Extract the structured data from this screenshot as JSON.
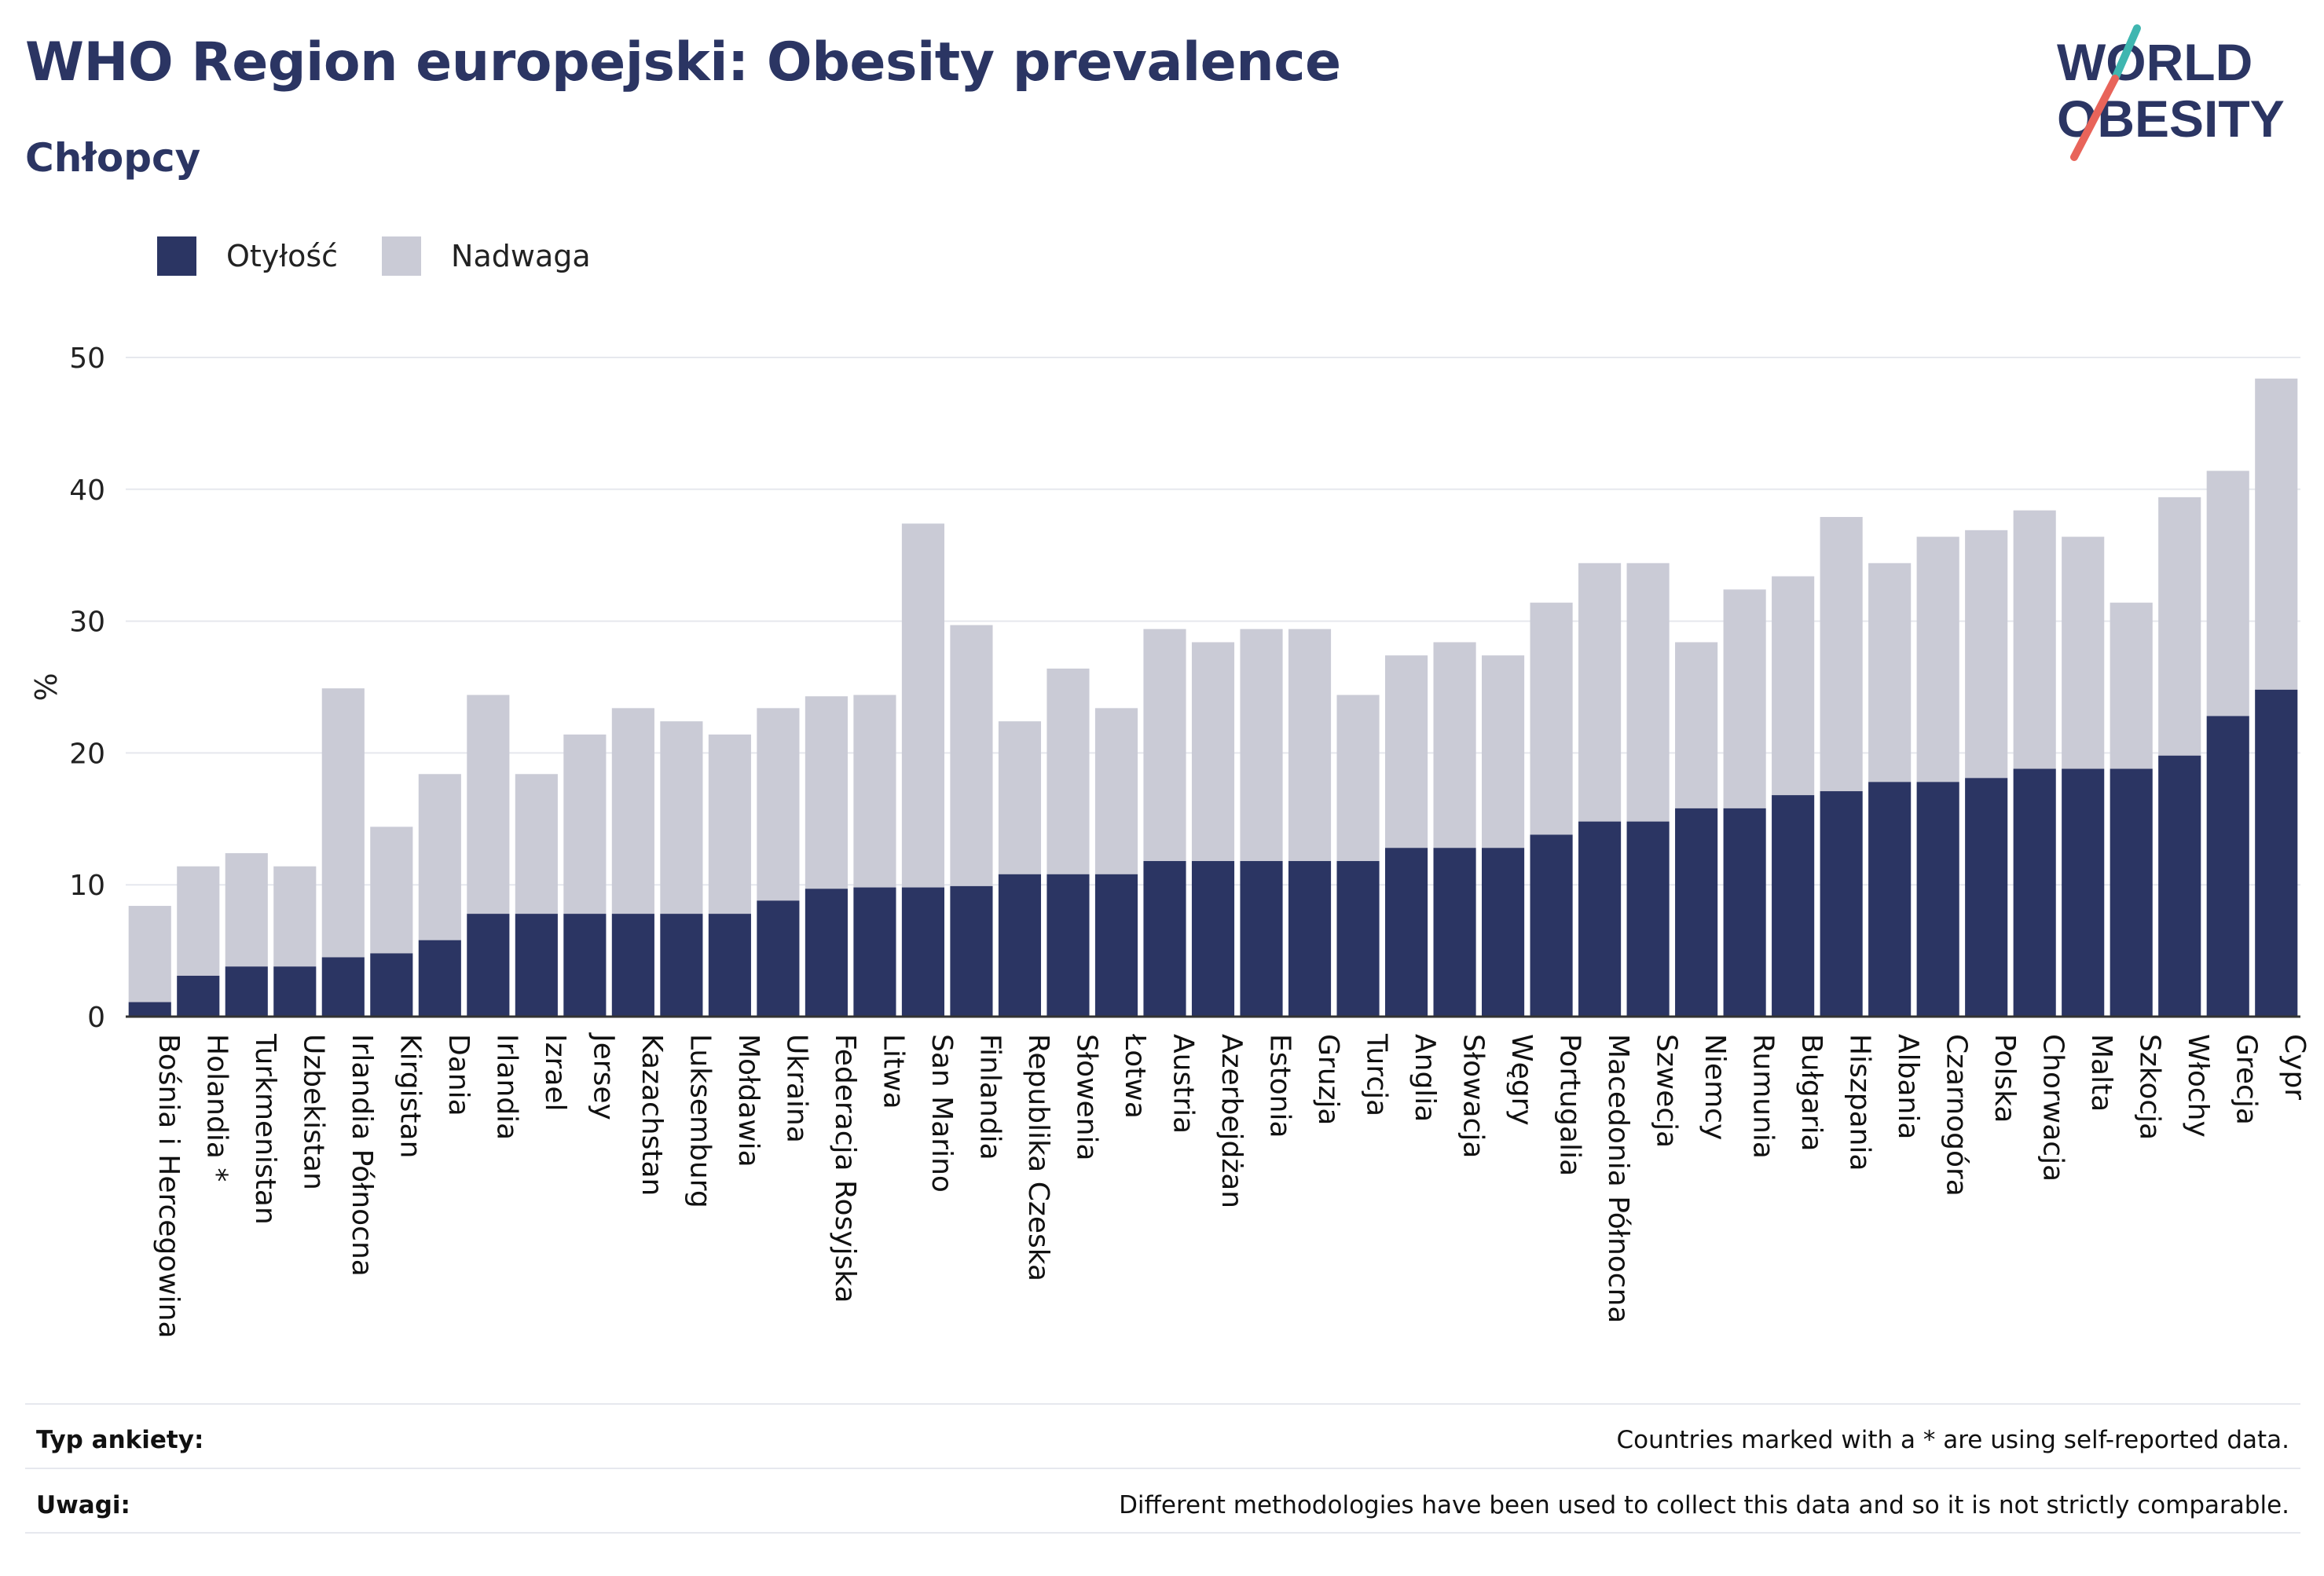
{
  "header": {
    "title": "WHO Region europejski: Obesity prevalence",
    "subtitle": "Chłopcy"
  },
  "logo": {
    "line1": "WORLD",
    "line2": "OBESITY",
    "color": "#2b3563",
    "accent_teal": "#3fb6b0",
    "accent_red": "#e8645a"
  },
  "legend": {
    "items": [
      {
        "label": "Otyłość",
        "color": "#2b3563"
      },
      {
        "label": "Nadwaga",
        "color": "#cacbd6"
      }
    ]
  },
  "chart_data": {
    "type": "bar",
    "stacked": true,
    "title": "WHO Region europejski: Obesity prevalence",
    "subtitle": "Chłopcy",
    "ylabel": "%",
    "xlabel": "",
    "ylim": [
      0,
      50
    ],
    "yticks": [
      0,
      10,
      20,
      30,
      40,
      50
    ],
    "grid": true,
    "legend_position": "top-left",
    "categories": [
      "Bośnia i Hercegowina",
      "Holandia *",
      "Turkmenistan",
      "Uzbekistan",
      "Irlandia Północna",
      "Kirgistan",
      "Dania",
      "Irlandia",
      "Izrael",
      "Jersey",
      "Kazachstan",
      "Luksemburg",
      "Mołdawia",
      "Ukraina",
      "Federacja Rosyjska",
      "Litwa",
      "San Marino",
      "Finlandia",
      "Republika Czeska",
      "Słowenia",
      "Łotwa",
      "Austria",
      "Azerbejdżan",
      "Estonia",
      "Gruzja",
      "Turcja",
      "Anglia",
      "Słowacja",
      "Węgry",
      "Portugalia",
      "Macedonia Północna",
      "Szwecja",
      "Niemcy",
      "Rumunia",
      "Bułgaria",
      "Hiszpania",
      "Albania",
      "Czarnogóra",
      "Polska",
      "Chorwacja",
      "Malta",
      "Szkocja",
      "Włochy",
      "Grecja",
      "Cypr"
    ],
    "series": [
      {
        "name": "Otyłość",
        "color": "#2b3563",
        "values": [
          1.1,
          3.1,
          3.8,
          3.8,
          4.5,
          4.8,
          5.8,
          7.8,
          7.8,
          7.8,
          7.8,
          7.8,
          7.8,
          8.8,
          9.7,
          9.8,
          9.8,
          9.9,
          10.8,
          10.8,
          10.8,
          11.8,
          11.8,
          11.8,
          11.8,
          11.8,
          12.8,
          12.8,
          12.8,
          13.8,
          14.8,
          14.8,
          15.8,
          15.8,
          16.8,
          17.1,
          17.8,
          17.8,
          18.1,
          18.8,
          18.8,
          18.8,
          19.8,
          22.8,
          24.8
        ]
      },
      {
        "name": "Nadwaga",
        "color": "#cacbd6",
        "values": [
          7.3,
          8.3,
          8.6,
          7.6,
          20.4,
          9.6,
          12.6,
          16.6,
          10.6,
          13.6,
          15.6,
          14.6,
          13.6,
          14.6,
          14.6,
          14.6,
          27.6,
          19.8,
          11.6,
          15.6,
          12.6,
          17.6,
          16.6,
          17.6,
          17.6,
          12.6,
          14.6,
          15.6,
          14.6,
          17.6,
          19.6,
          19.6,
          12.6,
          16.6,
          16.6,
          20.8,
          16.6,
          18.6,
          18.8,
          19.6,
          17.6,
          12.6,
          19.6,
          18.6,
          23.6
        ]
      }
    ]
  },
  "footer": {
    "rows": [
      {
        "label": "Typ ankiety:",
        "text": "Countries marked with a * are using self-reported data."
      },
      {
        "label": "Uwagi:",
        "text": "Different methodologies have been used to collect this data and so it is not strictly comparable."
      }
    ]
  }
}
